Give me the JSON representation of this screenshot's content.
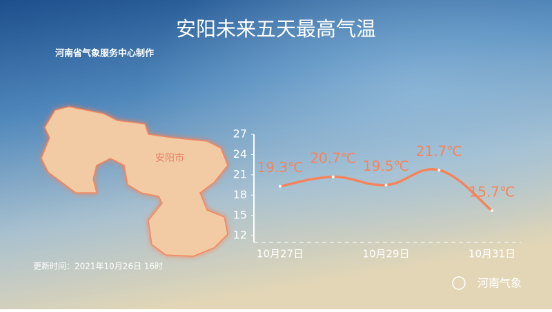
{
  "title": "安阳未来五天最高气温",
  "subtitle": "河南省气象服务中心制作",
  "map_label": "安阳市",
  "update_time": "更新时间：2021年10月26日 16时",
  "watermark": "河南气象",
  "chart_data": {
    "type": "line",
    "categories": [
      "10月27日",
      null,
      "10月29日",
      null,
      "10月31日"
    ],
    "values": [
      19.3,
      20.7,
      19.5,
      21.7,
      15.7
    ],
    "value_labels": [
      "19.3℃",
      "20.7℃",
      "19.5℃",
      "21.7℃",
      "15.7℃"
    ],
    "color": "#f5845c",
    "ylim": [
      11,
      27
    ],
    "yticks": [
      12,
      15,
      18,
      21,
      24,
      27
    ]
  }
}
